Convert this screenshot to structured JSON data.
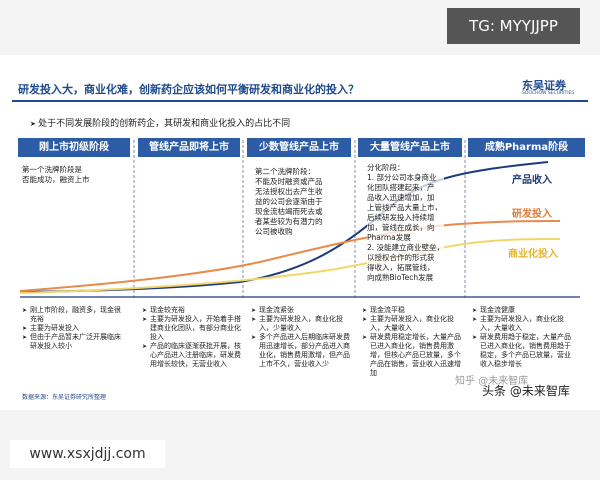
{
  "overlay_tag": "TG: MYYJJPP",
  "header": {
    "title": "研发投入大，商业化难，创新药企应该如何平衡研发和商业化的投入？",
    "logo": "东吴证券",
    "logo_en": "SOOCHOW SECURITIES"
  },
  "subtitle": "处于不同发展阶段的创新药企，其研发和商业化投入的占比不同",
  "stages": [
    {
      "name": "刚上市初级阶段",
      "note": [
        "第一个洗牌阶段是",
        "否能成功，融资上市"
      ],
      "bullets": [
        "刚上市阶段，融资多，现金很充裕",
        "主要为研发投入",
        "但由于产品暂未广泛开展临床研发投入较小"
      ]
    },
    {
      "name": "管线产品即将上市",
      "bullets": [
        "现金较充裕",
        "主要为研发投入，开始着手搭建商业化团队，有部分商业化投入",
        "产品的临床逐渐获批开展，核心产品进入注册临床，研发费用增长较快，无营业收入"
      ]
    },
    {
      "name": "少数管线产品上市",
      "note": [
        "第二个洗牌阶段：",
        "不能及时融资或产品",
        "无法授权出去产生收",
        "益的公司会逐渐由于",
        "现金流枯竭而死去或",
        "者某些较为有潜力的",
        "公司被收购"
      ],
      "bullets": [
        "现金流紧张",
        "主要为研发投入，商业化投入，少量收入",
        "多个产品进入后期临床研发费用迅速增长，部分产品进入商业化，销售费用激增，但产品上市不久，营业收入少"
      ]
    },
    {
      "name": "大量管线产品上市",
      "note": [
        "分化阶段：",
        "1. 部分公司本身商业",
        "化团队搭建起来，产",
        "品收入迅速增加，加",
        "上管线产品大量上市，",
        "后续研发投入持续增",
        "加，管线在成长，向",
        "Pharma发展",
        "2. 没能建立商业壁垒，",
        "以授权合作的形式获",
        "得收入，拓展管线，",
        "向成熟BioTech发展"
      ],
      "bullets": [
        "现金流平稳",
        "主要为研发投入，商业化投入，大量收入",
        "研发费用稳定增长，大量产品已进入商业化，销售费用激增，但核心产品已放量，多个产品在销售，营业收入迅速增加"
      ]
    },
    {
      "name": "成熟Pharma阶段",
      "bullets": [
        "现金流健康",
        "主要为研发投入，商业化投入，大量收入",
        "研发费用趋于稳定，大量产品已进入商业化，销售费用趋于稳定，多个产品已放量，营业收入稳步增长"
      ]
    }
  ],
  "legend": {
    "revenue": "产品收入",
    "rnd": "研发投入",
    "commercial": "商业化投入"
  },
  "source": "数据来源：东吴证券研究所整理",
  "watermarks": [
    "知乎 @未来智库",
    "头条 @未来智库"
  ],
  "footer_url": "www.xsxjdjj.com"
}
